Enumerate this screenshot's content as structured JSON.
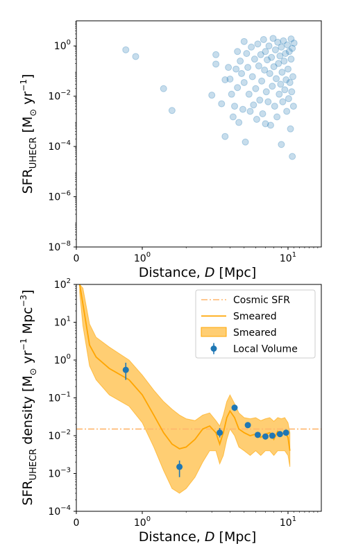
{
  "chart_data": [
    {
      "type": "scatter",
      "title": "",
      "xlabel": "Distance, D  [Mpc]",
      "ylabel": "SFR_UHECR [M_sun yr^-1]",
      "xscale": "symlog-like",
      "yscale": "log",
      "xlim": [
        0,
        20
      ],
      "ylim": [
        1e-08,
        10
      ],
      "xticks": [
        "0",
        "10^0",
        "10^1"
      ],
      "yticks": [
        "10^-8",
        "10^-6",
        "10^-4",
        "10^-2",
        "10^0"
      ],
      "color": "#1f77b4",
      "series": [
        {
          "name": "",
          "points": [
            [
              0.75,
              0.7
            ],
            [
              0.9,
              0.38
            ],
            [
              1.4,
              0.02
            ],
            [
              1.6,
              0.0027
            ],
            [
              3.0,
              0.011
            ],
            [
              3.2,
              0.45
            ],
            [
              3.2,
              0.19
            ],
            [
              3.5,
              0.005
            ],
            [
              3.7,
              0.045
            ],
            [
              3.7,
              0.00025
            ],
            [
              3.9,
              0.14
            ],
            [
              4.0,
              0.048
            ],
            [
              4.1,
              0.012
            ],
            [
              4.2,
              0.0015
            ],
            [
              4.3,
              0.004
            ],
            [
              4.4,
              0.12
            ],
            [
              4.5,
              0.6
            ],
            [
              4.5,
              0.022
            ],
            [
              4.6,
              0.0009
            ],
            [
              4.7,
              0.25
            ],
            [
              4.8,
              0.08
            ],
            [
              4.9,
              0.003
            ],
            [
              5.0,
              1.5
            ],
            [
              5.0,
              0.035
            ],
            [
              5.1,
              0.00015
            ],
            [
              5.2,
              0.5
            ],
            [
              5.3,
              0.14
            ],
            [
              5.4,
              0.012
            ],
            [
              5.5,
              0.0025
            ],
            [
              5.6,
              0.9
            ],
            [
              5.7,
              0.06
            ],
            [
              5.8,
              0.0045
            ],
            [
              5.9,
              0.3
            ],
            [
              6.0,
              0.02
            ],
            [
              6.1,
              0.0012
            ],
            [
              6.2,
              1.2
            ],
            [
              6.3,
              0.16
            ],
            [
              6.4,
              0.007
            ],
            [
              6.5,
              0.45
            ],
            [
              6.6,
              0.04
            ],
            [
              6.7,
              0.002
            ],
            [
              6.8,
              1.8
            ],
            [
              6.9,
              0.11
            ],
            [
              7.0,
              0.0008
            ],
            [
              7.0,
              0.6
            ],
            [
              7.1,
              0.015
            ],
            [
              7.2,
              0.28
            ],
            [
              7.3,
              0.006
            ],
            [
              7.4,
              1.0
            ],
            [
              7.5,
              0.08
            ],
            [
              7.6,
              0.0007
            ],
            [
              7.7,
              0.35
            ],
            [
              7.8,
              0.025
            ],
            [
              7.9,
              2.0
            ],
            [
              8.0,
              0.15
            ],
            [
              8.1,
              0.004
            ],
            [
              8.2,
              0.7
            ],
            [
              8.3,
              0.05
            ],
            [
              8.4,
              0.0015
            ],
            [
              8.5,
              1.4
            ],
            [
              8.6,
              0.2
            ],
            [
              8.7,
              0.012
            ],
            [
              8.8,
              0.4
            ],
            [
              8.9,
              0.03
            ],
            [
              9.0,
              0.00012
            ],
            [
              9.0,
              0.9
            ],
            [
              9.1,
              0.09
            ],
            [
              9.2,
              0.006
            ],
            [
              9.3,
              1.6
            ],
            [
              9.4,
              0.25
            ],
            [
              9.5,
              0.018
            ],
            [
              9.6,
              0.5
            ],
            [
              9.7,
              0.045
            ],
            [
              9.8,
              0.0025
            ],
            [
              9.9,
              1.1
            ],
            [
              10.0,
              0.12
            ],
            [
              10.1,
              0.008
            ],
            [
              10.2,
              0.6
            ],
            [
              10.3,
              0.035
            ],
            [
              10.4,
              0.0005
            ],
            [
              10.5,
              1.9
            ],
            [
              10.5,
              0.3
            ],
            [
              10.6,
              0.015
            ],
            [
              10.7,
              4e-05
            ],
            [
              10.7,
              0.8
            ],
            [
              10.8,
              0.06
            ],
            [
              10.9,
              0.004
            ],
            [
              11.0,
              1.3
            ]
          ]
        }
      ]
    },
    {
      "type": "line",
      "title": "",
      "xlabel": "Distance, D  [Mpc]",
      "ylabel": "SFR_UHECR density [M_sun yr^-1 Mpc^-3]",
      "xscale": "symlog-like",
      "yscale": "log",
      "xlim": [
        0,
        20
      ],
      "ylim": [
        0.0001,
        100
      ],
      "xticks": [
        "0",
        "10^0",
        "10^1"
      ],
      "yticks": [
        "10^-4",
        "10^-3",
        "10^-2",
        "10^-1",
        "10^0",
        "10^1",
        "10^2"
      ],
      "legend_position": "top-right",
      "legend": [
        "Cosmic SFR",
        "Smeared",
        "Smeared",
        "Local Volume"
      ],
      "series": [
        {
          "name": "Cosmic SFR",
          "style": "dash-dot",
          "color": "#ffb66b",
          "y": 0.015
        },
        {
          "name": "Smeared",
          "style": "line",
          "color": "#ffa500",
          "x": [
            0.05,
            0.1,
            0.2,
            0.3,
            0.5,
            0.8,
            1.0,
            1.2,
            1.4,
            1.6,
            1.8,
            2.0,
            2.3,
            2.6,
            2.9,
            3.2,
            3.4,
            3.6,
            3.8,
            4.0,
            4.3,
            4.6,
            5.0,
            5.5,
            6.0,
            6.5,
            7.0,
            7.5,
            8.0,
            8.5,
            9.0,
            9.5,
            10.0,
            10.3
          ],
          "y": [
            100,
            30,
            2.5,
            1.2,
            0.6,
            0.3,
            0.12,
            0.035,
            0.012,
            0.006,
            0.0045,
            0.005,
            0.008,
            0.015,
            0.018,
            0.012,
            0.006,
            0.012,
            0.03,
            0.045,
            0.03,
            0.015,
            0.012,
            0.01,
            0.011,
            0.009,
            0.011,
            0.012,
            0.008,
            0.013,
            0.011,
            0.012,
            0.009,
            0.004
          ]
        },
        {
          "name": "Smeared",
          "style": "band",
          "color": "#ffa500",
          "x": [
            0.05,
            0.1,
            0.2,
            0.3,
            0.5,
            0.8,
            1.0,
            1.2,
            1.4,
            1.6,
            1.8,
            2.0,
            2.3,
            2.6,
            2.9,
            3.2,
            3.4,
            3.6,
            3.8,
            4.0,
            4.3,
            4.6,
            5.0,
            5.5,
            6.0,
            6.5,
            7.0,
            7.5,
            8.0,
            8.5,
            9.0,
            9.5,
            10.0,
            10.3
          ],
          "upper": [
            100,
            80,
            9,
            4,
            2.2,
            1.0,
            0.4,
            0.16,
            0.08,
            0.05,
            0.035,
            0.028,
            0.025,
            0.035,
            0.04,
            0.025,
            0.018,
            0.035,
            0.08,
            0.12,
            0.07,
            0.04,
            0.03,
            0.028,
            0.03,
            0.025,
            0.028,
            0.03,
            0.024,
            0.03,
            0.028,
            0.03,
            0.022,
            0.012
          ],
          "lower": [
            60,
            8,
            0.7,
            0.3,
            0.12,
            0.06,
            0.022,
            0.005,
            0.0012,
            0.0004,
            0.0003,
            0.0004,
            0.0008,
            0.002,
            0.004,
            0.004,
            0.0018,
            0.003,
            0.008,
            0.015,
            0.01,
            0.005,
            0.004,
            0.003,
            0.004,
            0.003,
            0.004,
            0.004,
            0.003,
            0.004,
            0.004,
            0.004,
            0.003,
            0.0015
          ]
        },
        {
          "name": "Local Volume",
          "style": "errorbar",
          "color": "#1f77b4",
          "points": [
            {
              "x": 0.75,
              "y": 0.55,
              "lo": 0.3,
              "hi": 0.85
            },
            {
              "x": 1.8,
              "y": 0.0015,
              "lo": 0.0008,
              "hi": 0.0022
            },
            {
              "x": 3.4,
              "y": 0.012,
              "lo": 0.009,
              "hi": 0.016
            },
            {
              "x": 4.3,
              "y": 0.055,
              "lo": 0.045,
              "hi": 0.065
            },
            {
              "x": 5.3,
              "y": 0.019,
              "lo": 0.016,
              "hi": 0.022
            },
            {
              "x": 6.2,
              "y": 0.0105,
              "lo": 0.0092,
              "hi": 0.012
            },
            {
              "x": 7.0,
              "y": 0.0095,
              "lo": 0.0086,
              "hi": 0.0105
            },
            {
              "x": 7.8,
              "y": 0.01,
              "lo": 0.0092,
              "hi": 0.011
            },
            {
              "x": 8.8,
              "y": 0.011,
              "lo": 0.01,
              "hi": 0.012
            },
            {
              "x": 9.7,
              "y": 0.012,
              "lo": 0.011,
              "hi": 0.013
            }
          ]
        }
      ]
    }
  ]
}
